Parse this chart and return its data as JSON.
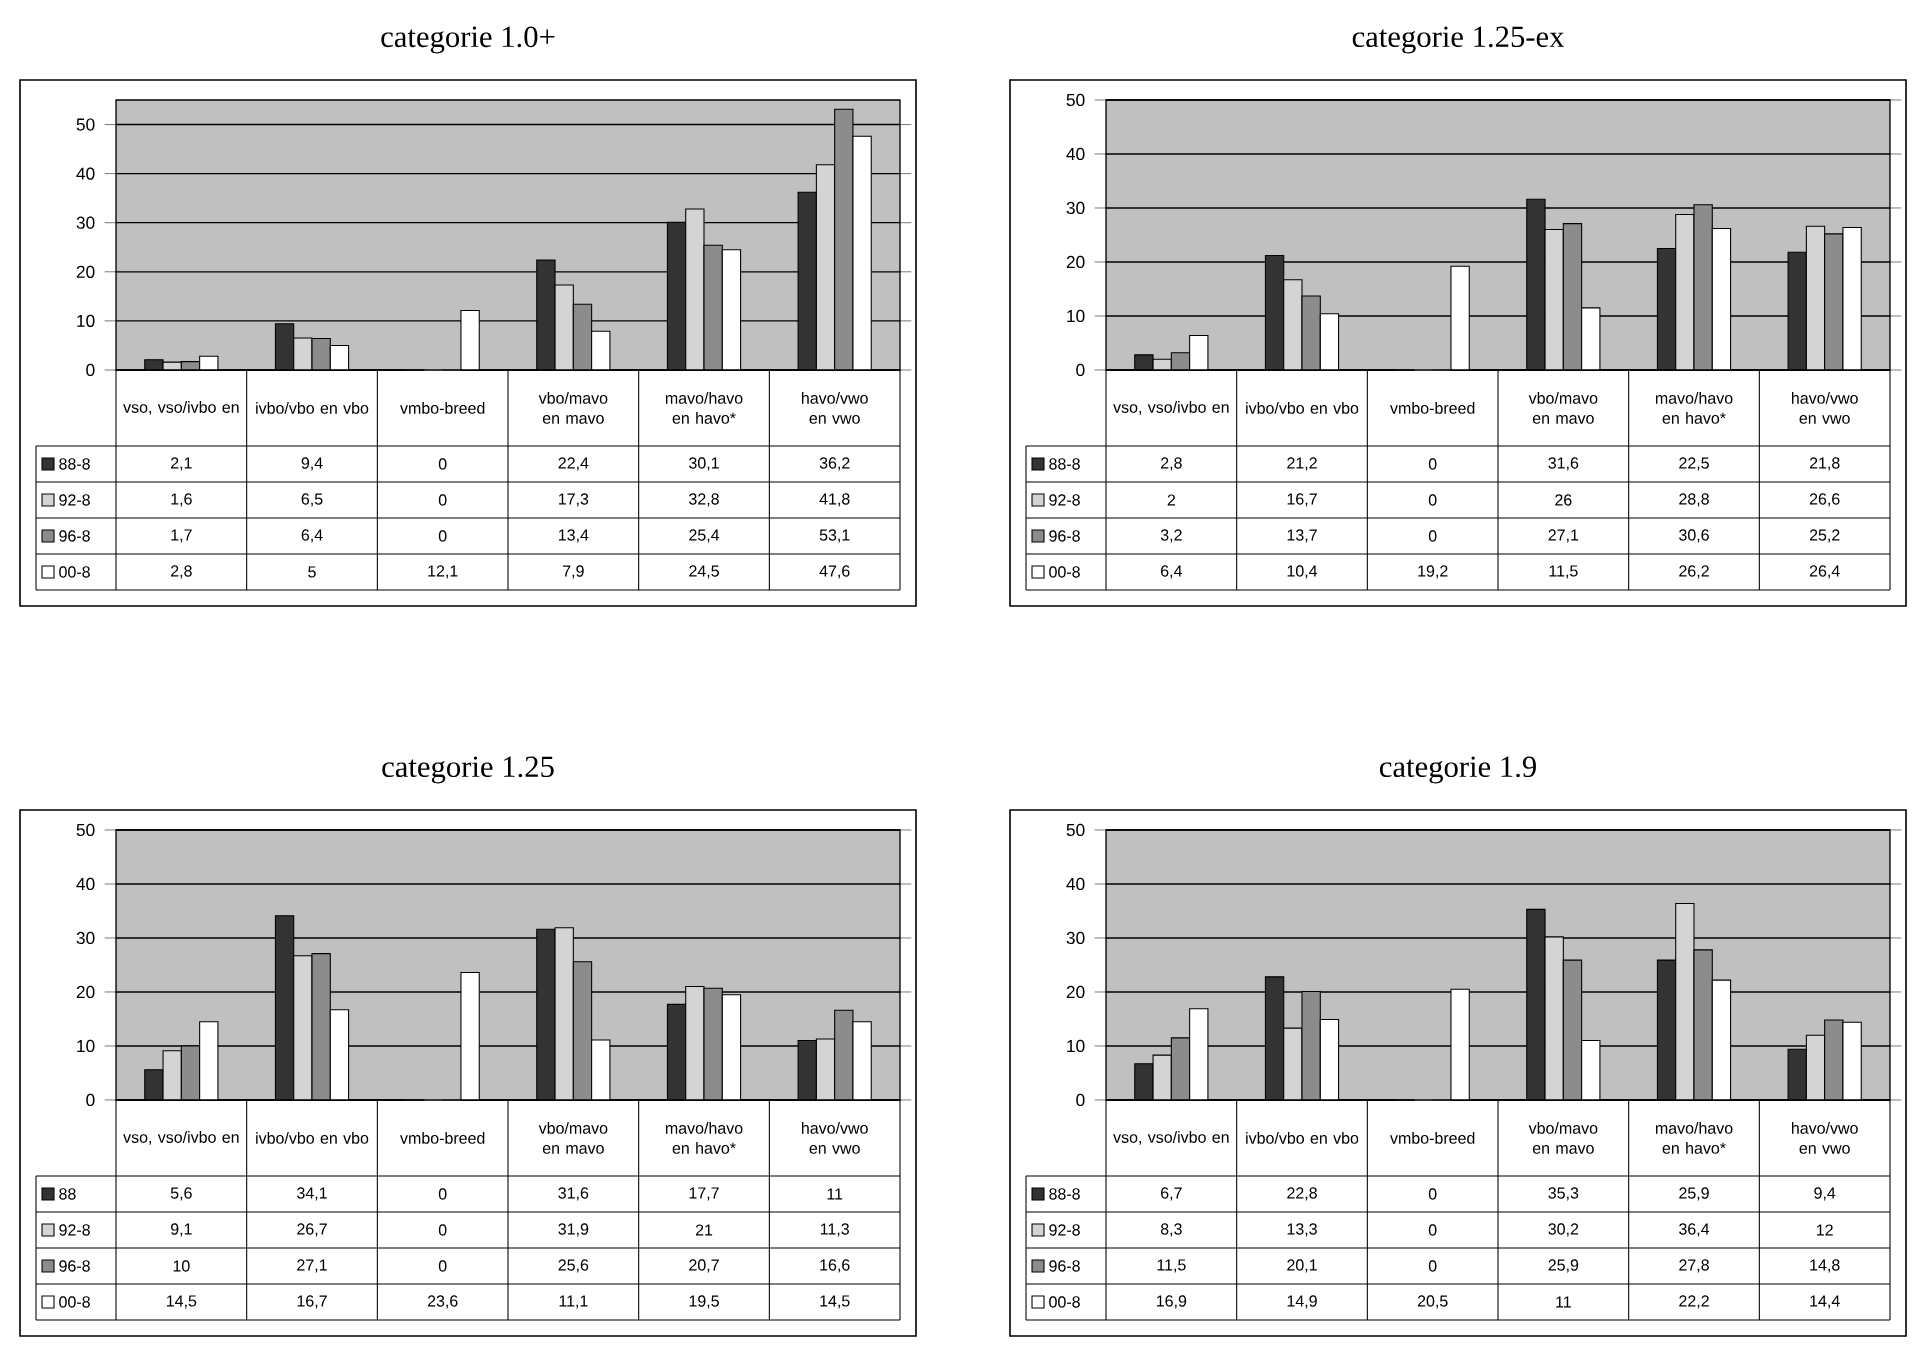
{
  "chart_data": [
    {
      "type": "bar",
      "title": "categorie 1.0+",
      "categories": [
        "vso, vso/ivbo en",
        "ivbo/vbo en vbo",
        "vmbo-breed",
        "vbo/mavo en mavo",
        "mavo/havo en havo*",
        "havo/vwo en vwo"
      ],
      "ylim": [
        0,
        55
      ],
      "yticks": [
        0,
        10,
        20,
        30,
        40,
        50
      ],
      "grid": "y",
      "legend": "bottom",
      "series": [
        {
          "name": "88-8",
          "color": "#333333",
          "values": [
            2.1,
            9.4,
            0,
            22.4,
            30.1,
            36.2
          ],
          "value_labels": [
            "2,1",
            "9,4",
            "0",
            "22,4",
            "30,1",
            "36,2"
          ]
        },
        {
          "name": "92-8",
          "color": "#d4d4d4",
          "values": [
            1.6,
            6.5,
            0,
            17.3,
            32.8,
            41.8
          ],
          "value_labels": [
            "1,6",
            "6,5",
            "0",
            "17,3",
            "32,8",
            "41,8"
          ]
        },
        {
          "name": "96-8",
          "color": "#8c8c8c",
          "values": [
            1.7,
            6.4,
            0,
            13.4,
            25.4,
            53.1
          ],
          "value_labels": [
            "1,7",
            "6,4",
            "0",
            "13,4",
            "25,4",
            "53,1"
          ]
        },
        {
          "name": "00-8",
          "color": "#ffffff",
          "values": [
            2.8,
            5,
            12.1,
            7.9,
            24.5,
            47.6
          ],
          "value_labels": [
            "2,8",
            "5",
            "12,1",
            "7,9",
            "24,5",
            "47,6"
          ]
        }
      ]
    },
    {
      "type": "bar",
      "title": "categorie 1.25-ex",
      "categories": [
        "vso, vso/ivbo en",
        "ivbo/vbo en vbo",
        "vmbo-breed",
        "vbo/mavo en mavo",
        "mavo/havo en havo*",
        "havo/vwo en vwo"
      ],
      "ylim": [
        0,
        50
      ],
      "yticks": [
        0,
        10,
        20,
        30,
        40,
        50
      ],
      "grid": "y",
      "legend": "bottom",
      "series": [
        {
          "name": "88-8",
          "color": "#333333",
          "values": [
            2.8,
            21.2,
            0,
            31.6,
            22.5,
            21.8
          ],
          "value_labels": [
            "2,8",
            "21,2",
            "0",
            "31,6",
            "22,5",
            "21,8"
          ]
        },
        {
          "name": "92-8",
          "color": "#d4d4d4",
          "values": [
            2,
            16.7,
            0,
            26,
            28.8,
            26.6
          ],
          "value_labels": [
            "2",
            "16,7",
            "0",
            "26",
            "28,8",
            "26,6"
          ]
        },
        {
          "name": "96-8",
          "color": "#8c8c8c",
          "values": [
            3.2,
            13.7,
            0,
            27.1,
            30.6,
            25.2
          ],
          "value_labels": [
            "3,2",
            "13,7",
            "0",
            "27,1",
            "30,6",
            "25,2"
          ]
        },
        {
          "name": "00-8",
          "color": "#ffffff",
          "values": [
            6.4,
            10.4,
            19.2,
            11.5,
            26.2,
            26.4
          ],
          "value_labels": [
            "6,4",
            "10,4",
            "19,2",
            "11,5",
            "26,2",
            "26,4"
          ]
        }
      ]
    },
    {
      "type": "bar",
      "title": "categorie 1.25",
      "categories": [
        "vso, vso/ivbo en",
        "ivbo/vbo en vbo",
        "vmbo-breed",
        "vbo/mavo en mavo",
        "mavo/havo en havo*",
        "havo/vwo en vwo"
      ],
      "ylim": [
        0,
        50
      ],
      "yticks": [
        0,
        10,
        20,
        30,
        40,
        50
      ],
      "grid": "y",
      "legend": "bottom",
      "series": [
        {
          "name": "88",
          "color": "#333333",
          "values": [
            5.6,
            34.1,
            0,
            31.6,
            17.7,
            11
          ],
          "value_labels": [
            "5,6",
            "34,1",
            "0",
            "31,6",
            "17,7",
            "11"
          ]
        },
        {
          "name": "92-8",
          "color": "#d4d4d4",
          "values": [
            9.1,
            26.7,
            0,
            31.9,
            21,
            11.3
          ],
          "value_labels": [
            "9,1",
            "26,7",
            "0",
            "31,9",
            "21",
            "11,3"
          ]
        },
        {
          "name": "96-8",
          "color": "#8c8c8c",
          "values": [
            10,
            27.1,
            0,
            25.6,
            20.7,
            16.6
          ],
          "value_labels": [
            "10",
            "27,1",
            "0",
            "25,6",
            "20,7",
            "16,6"
          ]
        },
        {
          "name": "00-8",
          "color": "#ffffff",
          "values": [
            14.5,
            16.7,
            23.6,
            11.1,
            19.5,
            14.5
          ],
          "value_labels": [
            "14,5",
            "16,7",
            "23,6",
            "11,1",
            "19,5",
            "14,5"
          ]
        }
      ]
    },
    {
      "type": "bar",
      "title": "categorie 1.9",
      "categories": [
        "vso, vso/ivbo en",
        "ivbo/vbo en vbo",
        "vmbo-breed",
        "vbo/mavo en mavo",
        "mavo/havo en havo*",
        "havo/vwo en vwo"
      ],
      "ylim": [
        0,
        50
      ],
      "yticks": [
        0,
        10,
        20,
        30,
        40,
        50
      ],
      "grid": "y",
      "legend": "bottom",
      "series": [
        {
          "name": "88-8",
          "color": "#333333",
          "values": [
            6.7,
            22.8,
            0,
            35.3,
            25.9,
            9.4
          ],
          "value_labels": [
            "6,7",
            "22,8",
            "0",
            "35,3",
            "25,9",
            "9,4"
          ]
        },
        {
          "name": "92-8",
          "color": "#d4d4d4",
          "values": [
            8.3,
            13.3,
            0,
            30.2,
            36.4,
            12
          ],
          "value_labels": [
            "8,3",
            "13,3",
            "0",
            "30,2",
            "36,4",
            "12"
          ]
        },
        {
          "name": "96-8",
          "color": "#8c8c8c",
          "values": [
            11.5,
            20.1,
            0,
            25.9,
            27.8,
            14.8
          ],
          "value_labels": [
            "11,5",
            "20,1",
            "0",
            "25,9",
            "27,8",
            "14,8"
          ]
        },
        {
          "name": "00-8",
          "color": "#ffffff",
          "values": [
            16.9,
            14.9,
            20.5,
            11,
            22.2,
            14.4
          ],
          "value_labels": [
            "16,9",
            "14,9",
            "20,5",
            "11",
            "22,2",
            "14,4"
          ]
        }
      ]
    }
  ]
}
